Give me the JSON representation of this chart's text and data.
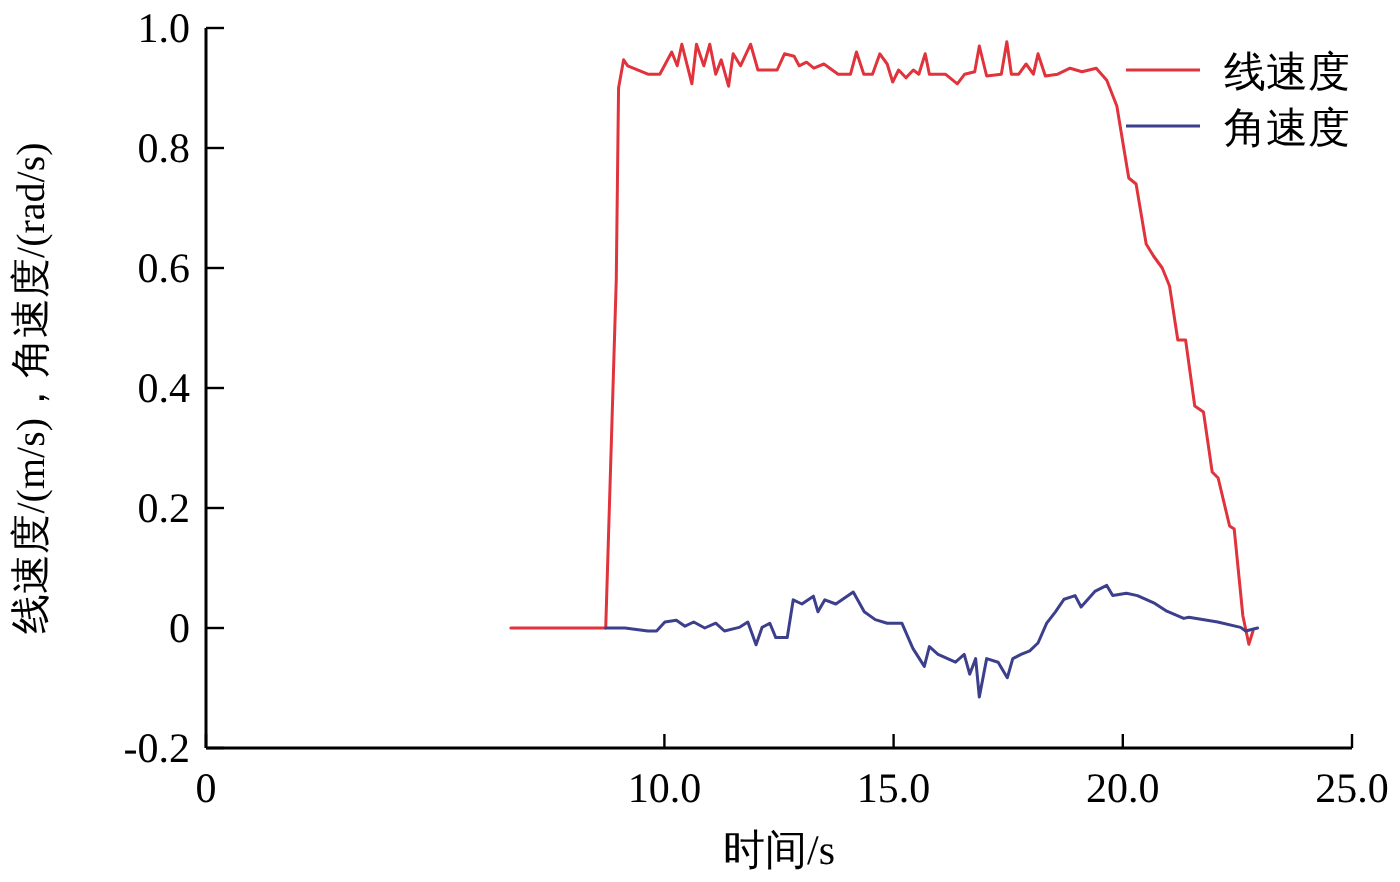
{
  "chart_data": {
    "type": "line",
    "xlabel": "时间/s",
    "ylabel": "线速度/(m/s)，角速度/(rad/s)",
    "xlim": [
      0,
      25
    ],
    "ylim": [
      -0.2,
      1.0
    ],
    "xticks": [
      0,
      {
        "value": 10,
        "label": "10.0"
      },
      {
        "value": 15,
        "label": "15.0"
      },
      {
        "value": 20,
        "label": "20.0"
      },
      {
        "value": 25,
        "label": "25.0"
      }
    ],
    "yticks": [
      {
        "value": -0.2,
        "label": "-0.2"
      },
      0,
      0.2,
      0.4,
      0.6,
      0.8,
      {
        "value": 1.0,
        "label": "1.0"
      }
    ],
    "grid": false,
    "legend": "top right",
    "marker": "none",
    "line_style": "solid",
    "series": [
      {
        "name": "线速度",
        "color": "#e0333c",
        "x": [
          6.65,
          8.72,
          8.95,
          9.0,
          9.11,
          9.2,
          9.64,
          9.9,
          10.0,
          10.16,
          10.28,
          10.38,
          10.6,
          10.7,
          10.86,
          10.99,
          11.12,
          11.24,
          11.4,
          11.5,
          11.66,
          11.88,
          12.04,
          12.46,
          12.62,
          12.83,
          12.94,
          13.1,
          13.26,
          13.48,
          13.79,
          14.06,
          14.19,
          14.35,
          14.54,
          14.7,
          14.86,
          14.98,
          15.11,
          15.27,
          15.43,
          15.55,
          15.69,
          15.78,
          16.13,
          16.39,
          16.55,
          16.77,
          16.87,
          17.03,
          17.35,
          17.47,
          17.57,
          17.73,
          17.89,
          18.05,
          18.15,
          18.31,
          18.58,
          18.85,
          19.11,
          19.42,
          19.65,
          19.87,
          20.13,
          20.29,
          20.51,
          20.67,
          20.86,
          21.02,
          21.2,
          21.37,
          21.57,
          21.76,
          21.95,
          22.08,
          22.33,
          22.43,
          22.62,
          22.75,
          22.84
        ],
        "values": [
          0,
          0,
          0.58,
          0.9,
          0.947,
          0.937,
          0.923,
          0.923,
          0.937,
          0.96,
          0.937,
          0.973,
          0.907,
          0.973,
          0.937,
          0.973,
          0.923,
          0.947,
          0.903,
          0.957,
          0.937,
          0.973,
          0.93,
          0.93,
          0.957,
          0.953,
          0.937,
          0.943,
          0.933,
          0.94,
          0.923,
          0.923,
          0.96,
          0.923,
          0.923,
          0.957,
          0.94,
          0.91,
          0.93,
          0.917,
          0.93,
          0.923,
          0.957,
          0.923,
          0.923,
          0.907,
          0.923,
          0.927,
          0.97,
          0.92,
          0.923,
          0.977,
          0.923,
          0.923,
          0.94,
          0.923,
          0.957,
          0.92,
          0.923,
          0.933,
          0.927,
          0.933,
          0.913,
          0.87,
          0.75,
          0.74,
          0.64,
          0.62,
          0.6,
          0.57,
          0.48,
          0.48,
          0.37,
          0.36,
          0.26,
          0.25,
          0.17,
          0.165,
          0.02,
          -0.027,
          -0.005
        ]
      },
      {
        "name": "角速度",
        "color": "#3b3f8c",
        "x": [
          8.72,
          9.14,
          9.64,
          9.83,
          10.01,
          10.26,
          10.45,
          10.64,
          10.88,
          11.12,
          11.31,
          11.63,
          11.82,
          12.0,
          12.13,
          12.3,
          12.43,
          12.68,
          12.81,
          13.0,
          13.25,
          13.35,
          13.5,
          13.74,
          14.12,
          14.36,
          14.6,
          14.86,
          15.18,
          15.42,
          15.67,
          15.78,
          15.97,
          16.35,
          16.54,
          16.66,
          16.79,
          16.87,
          17.03,
          17.28,
          17.48,
          17.6,
          17.78,
          17.97,
          18.15,
          18.34,
          18.53,
          18.72,
          18.96,
          19.09,
          19.39,
          19.65,
          19.78,
          20.08,
          20.32,
          20.7,
          20.96,
          21.33,
          21.44,
          22.07,
          22.57,
          22.68,
          22.94
        ],
        "values": [
          0,
          0,
          -0.005,
          -0.005,
          0.01,
          0.013,
          0.003,
          0.01,
          0,
          0.008,
          -0.005,
          0.001,
          0.01,
          -0.028,
          0.001,
          0.008,
          -0.016,
          -0.016,
          0.047,
          0.04,
          0.053,
          0.027,
          0.047,
          0.04,
          0.06,
          0.027,
          0.014,
          0.008,
          0.008,
          -0.034,
          -0.064,
          -0.031,
          -0.044,
          -0.057,
          -0.044,
          -0.077,
          -0.051,
          -0.115,
          -0.051,
          -0.057,
          -0.083,
          -0.051,
          -0.044,
          -0.038,
          -0.025,
          0.008,
          0.027,
          0.048,
          0.054,
          0.035,
          0.061,
          0.071,
          0.054,
          0.058,
          0.054,
          0.041,
          0.028,
          0.016,
          0.018,
          0.01,
          0.001,
          -0.005,
          0
        ]
      }
    ]
  }
}
